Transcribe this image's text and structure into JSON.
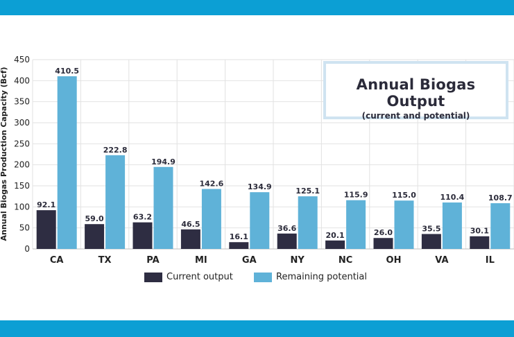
{
  "colors": {
    "current": "#2e2d42",
    "potential": "#5fb2d8",
    "band": "#0c9fd4"
  },
  "title": {
    "main": "Annual Biogas Output",
    "sub": "(current and potential)"
  },
  "chart_data": {
    "type": "bar",
    "title": "Annual Biogas Output",
    "subtitle": "(current and potential)",
    "xlabel": "",
    "ylabel": "Annual Biogas Production Capacity (Bcf)",
    "ylim": [
      0,
      450
    ],
    "yticks": [
      0,
      50,
      100,
      150,
      200,
      250,
      300,
      350,
      400,
      450
    ],
    "grid": true,
    "legend_position": "bottom",
    "categories": [
      "CA",
      "TX",
      "PA",
      "MI",
      "GA",
      "NY",
      "NC",
      "OH",
      "VA",
      "IL"
    ],
    "series": [
      {
        "name": "Current output",
        "values": [
          92.1,
          59.0,
          63.2,
          46.5,
          16.1,
          36.6,
          20.1,
          26.0,
          35.5,
          30.1
        ]
      },
      {
        "name": "Remaining potential",
        "values": [
          410.5,
          222.8,
          194.9,
          142.6,
          134.9,
          125.1,
          115.9,
          115.0,
          110.4,
          108.7
        ]
      }
    ]
  }
}
